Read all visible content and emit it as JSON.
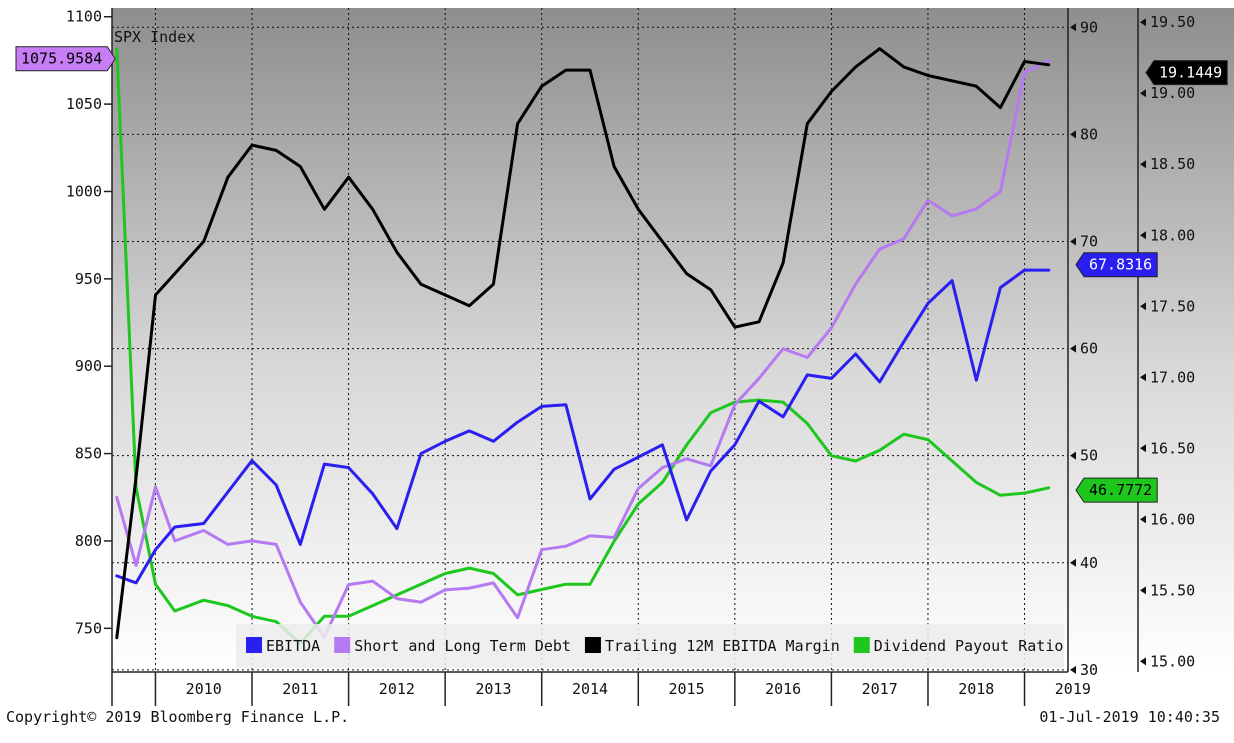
{
  "chart_data": {
    "type": "line",
    "title": "SPX Index",
    "copyright": "Copyright© 2019 Bloomberg Finance L.P.",
    "timestamp": "01-Jul-2019 10:40:35",
    "x_years": [
      "2010",
      "2011",
      "2012",
      "2013",
      "2014",
      "2015",
      "2016",
      "2017",
      "2018",
      "2019"
    ],
    "x_range": [
      2009.55,
      2019.45
    ],
    "axes": {
      "left": {
        "min": 725,
        "max": 1105,
        "ticks": [
          750,
          800,
          850,
          900,
          950,
          1000,
          1050,
          1100
        ]
      },
      "right1": {
        "min": 29.8,
        "max": 91.8,
        "ticks": [
          30,
          40,
          50,
          60,
          70,
          80,
          90
        ]
      },
      "right2": {
        "min": 14.925,
        "max": 19.6,
        "ticks": [
          "15.00",
          "15.50",
          "16.00",
          "16.50",
          "17.00",
          "17.50",
          "18.00",
          "18.50",
          "19.00",
          "19.50"
        ]
      }
    },
    "colors": {
      "EBITDA": "#2a1ff0",
      "Short and Long Term Debt": "#b57af2",
      "Trailing 12M EBITDA Margin": "#000000",
      "Dividend Payout Ratio": "#1ec71e"
    },
    "legend": [
      "EBITDA",
      "Short and Long Term Debt",
      "Trailing 12M EBITDA Margin",
      "Dividend Payout Ratio"
    ],
    "series": [
      {
        "name": "EBITDA",
        "axis": "left",
        "x": [
          2009.6,
          2009.8,
          2010.0,
          2010.2,
          2010.5,
          2010.75,
          2011.0,
          2011.25,
          2011.5,
          2011.75,
          2012.0,
          2012.25,
          2012.5,
          2012.75,
          2013.0,
          2013.25,
          2013.5,
          2013.75,
          2014.0,
          2014.25,
          2014.5,
          2014.75,
          2015.0,
          2015.25,
          2015.5,
          2015.75,
          2016.0,
          2016.25,
          2016.5,
          2016.75,
          2017.0,
          2017.25,
          2017.5,
          2017.75,
          2018.0,
          2018.25,
          2018.5,
          2018.75,
          2019.0,
          2019.25
        ],
        "values": [
          780,
          776,
          795,
          808,
          810,
          828,
          846,
          832,
          798,
          844,
          842,
          827,
          807,
          850,
          857,
          863,
          857,
          868,
          877,
          878,
          824,
          841,
          848,
          855,
          812,
          840,
          855,
          880,
          871,
          895,
          893,
          907,
          891,
          914,
          936,
          949,
          892,
          945,
          955,
          955
        ]
      },
      {
        "name": "Short and Long Term Debt",
        "axis": "left",
        "x": [
          2009.6,
          2009.8,
          2010.0,
          2010.2,
          2010.5,
          2010.75,
          2011.0,
          2011.25,
          2011.5,
          2011.75,
          2012.0,
          2012.25,
          2012.5,
          2012.75,
          2013.0,
          2013.25,
          2013.5,
          2013.75,
          2014.0,
          2014.25,
          2014.5,
          2014.75,
          2015.0,
          2015.25,
          2015.5,
          2015.75,
          2016.0,
          2016.25,
          2016.5,
          2016.75,
          2017.0,
          2017.25,
          2017.5,
          2017.75,
          2018.0,
          2018.25,
          2018.5,
          2018.75,
          2019.0,
          2019.25
        ],
        "values": [
          825,
          786,
          831,
          800,
          806,
          798,
          800,
          798,
          765,
          745,
          775,
          777,
          767,
          765,
          772,
          773,
          776,
          756,
          795,
          797,
          803,
          802,
          830,
          842,
          847,
          843,
          878,
          893,
          910,
          905,
          922,
          947,
          967,
          973,
          995,
          986,
          990,
          1000,
          1068,
          1075
        ]
      },
      {
        "name": "Trailing 12M EBITDA Margin",
        "axis": "right1",
        "x": [
          2009.6,
          2009.8,
          2010.0,
          2010.2,
          2010.5,
          2010.75,
          2011.0,
          2011.25,
          2011.5,
          2011.75,
          2012.0,
          2012.25,
          2012.5,
          2012.75,
          2013.0,
          2013.25,
          2013.5,
          2013.75,
          2014.0,
          2014.25,
          2014.5,
          2014.75,
          2015.0,
          2015.25,
          2015.5,
          2015.75,
          2016.0,
          2016.25,
          2016.5,
          2016.75,
          2017.0,
          2017.25,
          2017.5,
          2017.75,
          2018.0,
          2018.25,
          2018.5,
          2018.75,
          2019.0,
          2019.25
        ],
        "values": [
          33,
          48,
          65,
          67,
          70,
          76,
          79,
          78.5,
          77,
          73,
          76,
          73,
          69,
          66,
          65,
          64,
          66,
          81,
          84.5,
          86,
          86,
          77,
          73,
          70,
          67,
          65.5,
          62,
          62.5,
          68,
          81,
          84,
          86.3,
          88,
          86.3,
          85.5,
          85,
          84.5,
          82.5,
          86.8,
          86.5
        ]
      },
      {
        "name": "Dividend Payout Ratio",
        "axis": "right1",
        "x": [
          2009.6,
          2009.8,
          2010.0,
          2010.2,
          2010.5,
          2010.75,
          2011.0,
          2011.25,
          2011.5,
          2011.75,
          2012.0,
          2012.25,
          2012.5,
          2012.75,
          2013.0,
          2013.25,
          2013.5,
          2013.75,
          2014.0,
          2014.25,
          2014.5,
          2014.75,
          2015.0,
          2015.25,
          2015.5,
          2015.75,
          2016.0,
          2016.25,
          2016.5,
          2016.75,
          2017.0,
          2017.25,
          2017.5,
          2017.75,
          2018.0,
          2018.25,
          2018.5,
          2018.75,
          2019.0,
          2019.25
        ],
        "values": [
          88,
          47,
          38,
          35.5,
          36.5,
          36,
          35,
          34.5,
          32.5,
          35,
          35,
          36,
          37,
          38,
          39,
          39.5,
          39,
          37,
          37.5,
          38,
          38,
          42,
          45.5,
          47.5,
          51,
          54,
          55,
          55.2,
          55,
          53,
          50,
          49.5,
          50.5,
          52,
          51.5,
          49.5,
          47.5,
          46.3,
          46.5,
          47
        ]
      }
    ],
    "annotations": [
      {
        "label": "1075.9584",
        "axis": "left",
        "value": 1075.9584,
        "side": "left",
        "bg": "#c77df5",
        "fg": "#000000"
      },
      {
        "label": "19.1449",
        "axis": "right2",
        "value": 19.1449,
        "side": "right2",
        "bg": "#000000",
        "fg": "#ffffff"
      },
      {
        "label": "67.8316",
        "axis": "right1",
        "value": 67.8316,
        "side": "right1",
        "bg": "#2a1ff0",
        "fg": "#ffffff"
      },
      {
        "label": "46.7772",
        "axis": "right1",
        "value": 46.7772,
        "side": "right1",
        "bg": "#1ec71e",
        "fg": "#000000"
      }
    ]
  }
}
